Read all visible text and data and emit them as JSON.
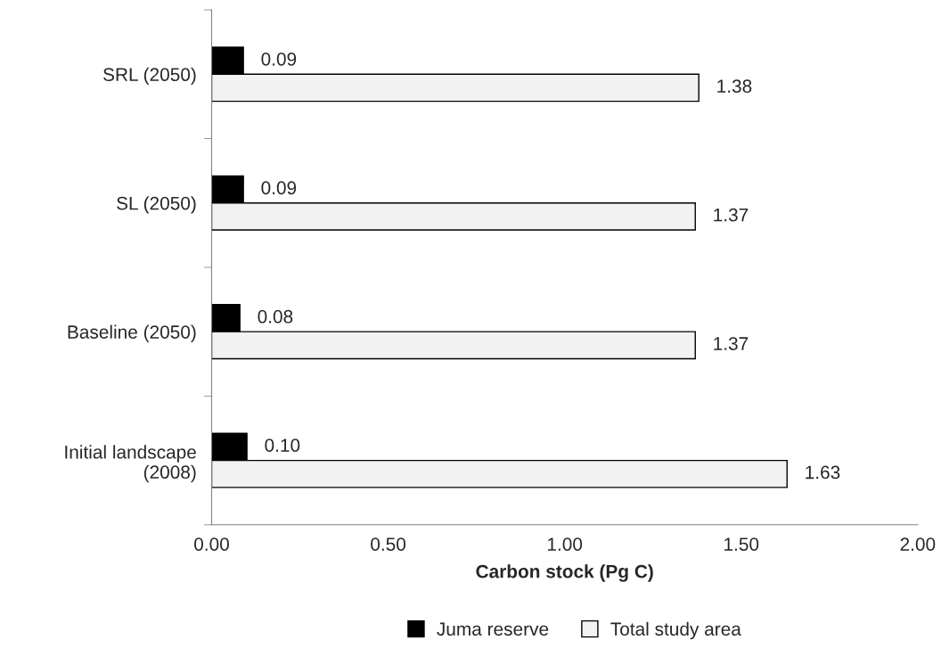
{
  "chart_data": {
    "type": "bar",
    "orientation": "horizontal",
    "xlabel": "Carbon stock (Pg C)",
    "categories": [
      "SRL (2050)",
      "SL (2050)",
      "Baseline (2050)",
      "Initial landscape\n(2008)"
    ],
    "series": [
      {
        "name": "Juma reserve",
        "color": "#000000",
        "values": [
          0.09,
          0.09,
          0.08,
          0.1
        ],
        "value_labels": [
          "0.09",
          "0.09",
          "0.08",
          "0.10"
        ]
      },
      {
        "name": "Total study area",
        "color": "#f2f2f2",
        "values": [
          1.38,
          1.37,
          1.37,
          1.63
        ],
        "value_labels": [
          "1.38",
          "1.37",
          "1.37",
          "1.63"
        ]
      }
    ],
    "xlim": [
      0,
      2
    ],
    "xticks": [
      {
        "value": 0,
        "label": "0.00"
      },
      {
        "value": 0.5,
        "label": "0.50"
      },
      {
        "value": 1,
        "label": "1.00"
      },
      {
        "value": 1.5,
        "label": "1.50"
      },
      {
        "value": 2,
        "label": "2.00"
      }
    ],
    "grid": false,
    "legend": "bottom"
  }
}
